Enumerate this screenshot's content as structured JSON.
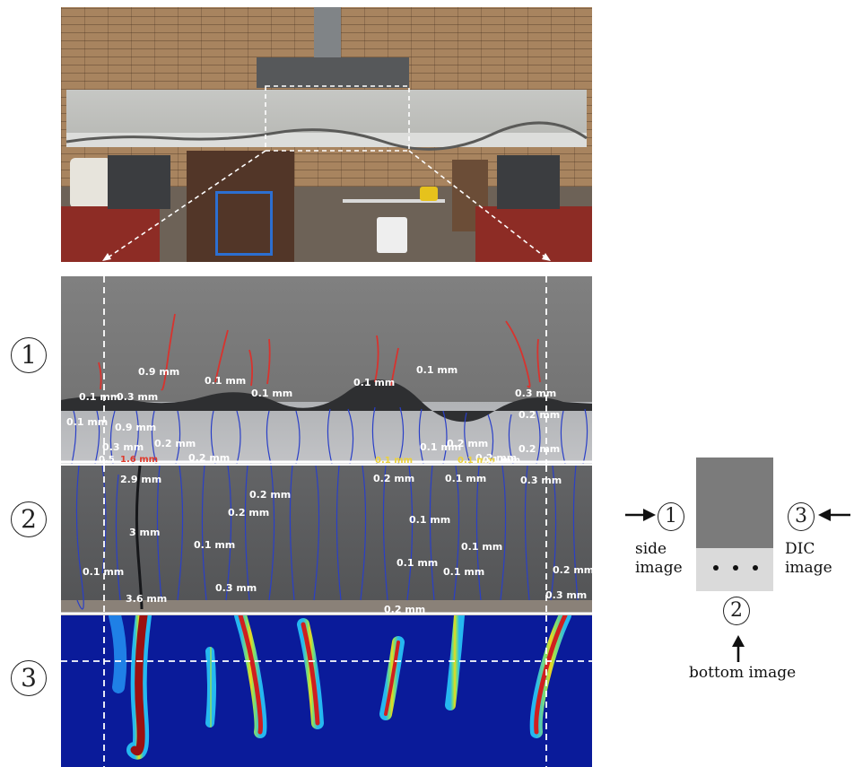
{
  "panels": {
    "side_image_number": "1",
    "bottom_image_number": "2",
    "dic_image_number": "3"
  },
  "side_image_labels": [
    "0.9 mm",
    "0.1 mm",
    "0.1 mm",
    "0.1 mm",
    "0.1 mm",
    "0.1 mm",
    "0.3 mm",
    "0.3 mm",
    "0.1 mm",
    "0.9 mm",
    "0.2 mm",
    "0.2 mm",
    "0.3 mm",
    "0.2 mm",
    "0.1 mm",
    "0.2 mm",
    "0.2 mm",
    "0.2 mm",
    "0.5",
    "1.6 mm",
    "0.1 mm",
    "0.1 mm",
    "0.1 mm"
  ],
  "bottom_image_labels": [
    "2.9 mm",
    "0.2 mm",
    "0.2 mm",
    "0.1 mm",
    "0.3 mm",
    "0.2 mm",
    "3 mm",
    "0.1 mm",
    "0.1 mm",
    "0.1 mm",
    "0.1 mm",
    "0.1 mm",
    "0.1 mm",
    "0.3 mm",
    "0.2 mm",
    "3.6 mm",
    "0.3 mm",
    "0.2 mm"
  ],
  "legend": {
    "section_number_1": "1",
    "section_number_2": "2",
    "section_number_3": "3",
    "side_text_line1": "side",
    "side_text_line2": "image",
    "dic_text_line1": "DIC",
    "dic_text_line2": "image",
    "bottom_text": "bottom image"
  },
  "colors": {
    "crack_red": "#d8332e",
    "crack_blue": "#2a3fc7",
    "dic_background": "#0a1b9a",
    "cross_section_top": "#7b7b7b",
    "cross_section_bottom": "#dadada"
  }
}
